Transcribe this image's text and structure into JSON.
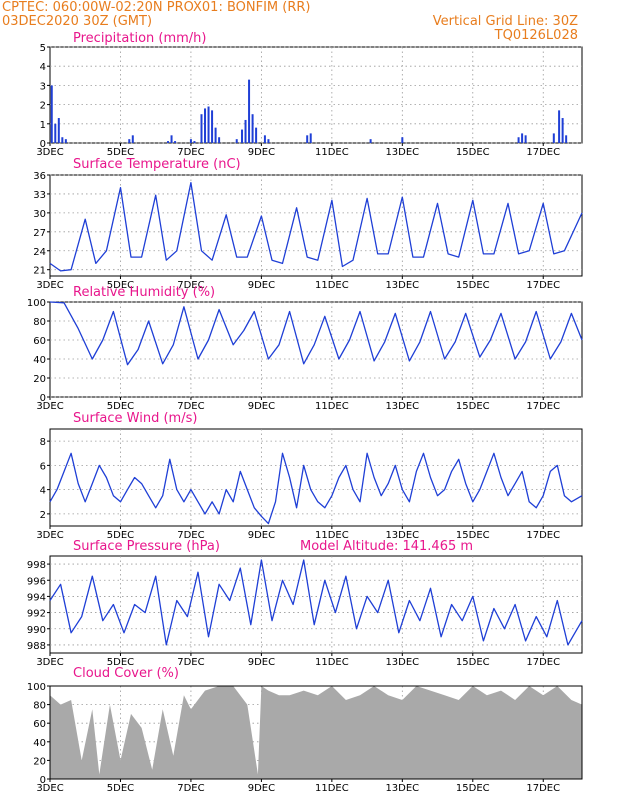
{
  "header": {
    "line1_left": "CPTEC:   060:00W-02:20N   PROX01: BONFIM (RR)",
    "line2_left": "03DEC2020 30Z (GMT)",
    "line2_right": "Vertical Grid Line: 30Z",
    "line3_right": "TQ0126L028"
  },
  "colors": {
    "header": "#e87d1e",
    "title": "#e8168c",
    "series": "#1f3fd6",
    "cloud": "#a9a9a9",
    "grid": "#9a9a9a"
  },
  "date_ticks": [
    "3DEC",
    "5DEC",
    "7DEC",
    "9DEC",
    "11DEC",
    "13DEC",
    "15DEC",
    "17DEC"
  ],
  "chart_data": [
    {
      "type": "bar",
      "title": "Precipitation (mm/h)",
      "x_range_days": [
        3.0,
        18.1
      ],
      "ylim": [
        0,
        5
      ],
      "yticks": [
        "0",
        "1",
        "2",
        "3",
        "4",
        "5"
      ],
      "x": [
        3.05,
        3.15,
        3.25,
        3.35,
        3.45,
        5.25,
        5.35,
        6.35,
        6.45,
        6.55,
        7.0,
        7.1,
        7.3,
        7.4,
        7.5,
        7.6,
        7.7,
        7.8,
        8.3,
        8.45,
        8.55,
        8.65,
        8.75,
        8.85,
        9.1,
        9.2,
        10.3,
        10.4,
        12.1,
        13.0,
        16.3,
        16.4,
        16.5,
        17.3,
        17.45,
        17.55,
        17.65
      ],
      "values": [
        3.0,
        1.0,
        1.3,
        0.3,
        0.2,
        0.2,
        0.4,
        0.1,
        0.4,
        0.1,
        0.2,
        0.1,
        1.5,
        1.8,
        1.9,
        1.7,
        0.8,
        0.3,
        0.2,
        0.7,
        1.2,
        3.3,
        1.5,
        0.8,
        0.4,
        0.2,
        0.4,
        0.5,
        0.2,
        0.3,
        0.3,
        0.5,
        0.4,
        0.5,
        1.7,
        1.3,
        0.4
      ]
    },
    {
      "type": "line",
      "title": "Surface Temperature (nC)",
      "x_range_days": [
        3.0,
        18.1
      ],
      "ylim": [
        20,
        36
      ],
      "yticks": [
        "21",
        "24",
        "27",
        "30",
        "33",
        "36"
      ],
      "x": [
        3.0,
        3.3,
        3.6,
        4.0,
        4.3,
        4.6,
        5.0,
        5.3,
        5.6,
        6.0,
        6.3,
        6.6,
        7.0,
        7.3,
        7.6,
        8.0,
        8.3,
        8.6,
        9.0,
        9.3,
        9.6,
        10.0,
        10.3,
        10.6,
        11.0,
        11.3,
        11.6,
        12.0,
        12.3,
        12.6,
        13.0,
        13.3,
        13.6,
        14.0,
        14.3,
        14.6,
        15.0,
        15.3,
        15.6,
        16.0,
        16.3,
        16.6,
        17.0,
        17.3,
        17.6,
        18.1
      ],
      "values": [
        22.0,
        20.8,
        21.0,
        29.0,
        22.0,
        24.0,
        34.0,
        23.0,
        23.0,
        32.8,
        22.5,
        24.0,
        34.8,
        24.0,
        22.5,
        29.7,
        23.0,
        23.0,
        29.5,
        22.5,
        22.0,
        30.8,
        23.0,
        22.5,
        32.0,
        21.5,
        22.5,
        32.3,
        23.5,
        23.5,
        32.5,
        23.0,
        23.0,
        31.5,
        23.5,
        23.0,
        32.0,
        23.5,
        23.5,
        31.5,
        23.5,
        24.0,
        31.5,
        23.5,
        24.0,
        30.0
      ]
    },
    {
      "type": "line",
      "title": "Relative Humidity (%)",
      "x_range_days": [
        3.0,
        18.1
      ],
      "ylim": [
        0,
        100
      ],
      "yticks": [
        "0",
        "20",
        "40",
        "60",
        "80",
        "100"
      ],
      "x": [
        3.0,
        3.4,
        3.8,
        4.2,
        4.5,
        4.8,
        5.2,
        5.5,
        5.8,
        6.2,
        6.5,
        6.8,
        7.2,
        7.5,
        7.8,
        8.2,
        8.5,
        8.8,
        9.2,
        9.5,
        9.8,
        10.2,
        10.5,
        10.8,
        11.2,
        11.5,
        11.8,
        12.2,
        12.5,
        12.8,
        13.2,
        13.5,
        13.8,
        14.2,
        14.5,
        14.8,
        15.2,
        15.5,
        15.8,
        16.2,
        16.5,
        16.8,
        17.2,
        17.5,
        17.8,
        18.1
      ],
      "values": [
        100,
        99,
        72,
        40,
        60,
        90,
        34,
        50,
        80,
        35,
        55,
        95,
        40,
        60,
        92,
        55,
        70,
        90,
        40,
        55,
        90,
        35,
        55,
        85,
        40,
        60,
        90,
        38,
        58,
        88,
        38,
        58,
        90,
        40,
        58,
        88,
        42,
        60,
        88,
        40,
        58,
        90,
        40,
        58,
        88,
        60
      ]
    },
    {
      "type": "line",
      "title": "Surface Wind (m/s)",
      "x_range_days": [
        3.0,
        18.1
      ],
      "ylim": [
        1,
        9
      ],
      "yticks": [
        "2",
        "4",
        "6",
        "8"
      ],
      "x": [
        3.0,
        3.2,
        3.4,
        3.6,
        3.8,
        4.0,
        4.2,
        4.4,
        4.6,
        4.8,
        5.0,
        5.2,
        5.4,
        5.6,
        5.8,
        6.0,
        6.2,
        6.4,
        6.6,
        6.8,
        7.0,
        7.2,
        7.4,
        7.6,
        7.8,
        8.0,
        8.2,
        8.4,
        8.6,
        8.8,
        9.0,
        9.2,
        9.4,
        9.6,
        9.8,
        10.0,
        10.2,
        10.4,
        10.6,
        10.8,
        11.0,
        11.2,
        11.4,
        11.6,
        11.8,
        12.0,
        12.2,
        12.4,
        12.6,
        12.8,
        13.0,
        13.2,
        13.4,
        13.6,
        13.8,
        14.0,
        14.2,
        14.4,
        14.6,
        14.8,
        15.0,
        15.2,
        15.4,
        15.6,
        15.8,
        16.0,
        16.2,
        16.4,
        16.6,
        16.8,
        17.0,
        17.2,
        17.4,
        17.6,
        17.8,
        18.1
      ],
      "values": [
        3.0,
        4.0,
        5.5,
        7.0,
        4.5,
        3.0,
        4.5,
        6.0,
        5.0,
        3.5,
        3.0,
        4.0,
        5.0,
        4.5,
        3.5,
        2.5,
        3.5,
        6.5,
        4.0,
        3.0,
        4.0,
        3.0,
        2.0,
        3.0,
        2.0,
        4.0,
        3.0,
        5.5,
        4.0,
        2.5,
        1.8,
        1.2,
        3.0,
        7.0,
        5.0,
        2.5,
        6.0,
        4.0,
        3.0,
        2.5,
        3.5,
        5.0,
        6.0,
        4.0,
        3.0,
        7.0,
        5.0,
        3.5,
        4.5,
        6.0,
        4.0,
        3.0,
        5.5,
        7.0,
        5.0,
        3.5,
        4.0,
        5.5,
        6.5,
        4.5,
        3.0,
        4.0,
        5.5,
        7.0,
        5.0,
        3.5,
        4.5,
        5.5,
        3.0,
        2.5,
        3.5,
        5.5,
        6.0,
        3.5,
        3.0,
        3.5
      ]
    },
    {
      "type": "line",
      "title": "Surface Pressure (hPa)",
      "annotation": "Model Altitude: 141.465  m",
      "x_range_days": [
        3.0,
        18.1
      ],
      "ylim": [
        987,
        999
      ],
      "yticks": [
        "988",
        "990",
        "992",
        "994",
        "996",
        "998"
      ],
      "x": [
        3.0,
        3.3,
        3.6,
        3.9,
        4.2,
        4.5,
        4.8,
        5.1,
        5.4,
        5.7,
        6.0,
        6.3,
        6.6,
        6.9,
        7.2,
        7.5,
        7.8,
        8.1,
        8.4,
        8.7,
        9.0,
        9.3,
        9.6,
        9.9,
        10.2,
        10.5,
        10.8,
        11.1,
        11.4,
        11.7,
        12.0,
        12.3,
        12.6,
        12.9,
        13.2,
        13.5,
        13.8,
        14.1,
        14.4,
        14.7,
        15.0,
        15.3,
        15.6,
        15.9,
        16.2,
        16.5,
        16.8,
        17.1,
        17.4,
        17.7,
        18.1
      ],
      "values": [
        993.5,
        995.5,
        989.5,
        991.5,
        996.5,
        991.0,
        993.0,
        989.5,
        993.0,
        992.0,
        996.5,
        988.0,
        993.5,
        991.5,
        997.0,
        989.0,
        995.5,
        993.5,
        997.5,
        990.5,
        998.5,
        991.0,
        996.0,
        993.0,
        998.5,
        990.5,
        996.0,
        992.0,
        996.5,
        990.0,
        994.0,
        992.0,
        996.0,
        989.5,
        993.5,
        991.0,
        995.0,
        989.0,
        993.0,
        991.0,
        994.0,
        988.5,
        992.5,
        990.0,
        993.0,
        988.5,
        991.5,
        989.0,
        993.5,
        988.0,
        991.0
      ]
    },
    {
      "type": "area",
      "title": "Cloud Cover (%)",
      "x_range_days": [
        3.0,
        18.1
      ],
      "ylim": [
        0,
        100
      ],
      "yticks": [
        "0",
        "20",
        "40",
        "60",
        "80",
        "100"
      ],
      "x": [
        3.0,
        3.3,
        3.6,
        3.9,
        4.2,
        4.4,
        4.7,
        5.0,
        5.3,
        5.6,
        5.9,
        6.2,
        6.5,
        6.8,
        7.0,
        7.4,
        7.8,
        8.2,
        8.6,
        8.9,
        9.0,
        9.2,
        9.5,
        9.8,
        10.2,
        10.6,
        11.0,
        11.4,
        11.8,
        12.2,
        12.6,
        13.0,
        13.4,
        13.8,
        14.2,
        14.6,
        15.0,
        15.4,
        15.8,
        16.2,
        16.6,
        17.0,
        17.4,
        17.8,
        18.1
      ],
      "values": [
        90,
        80,
        85,
        20,
        75,
        5,
        80,
        20,
        70,
        55,
        10,
        75,
        25,
        90,
        75,
        95,
        100,
        100,
        80,
        5,
        100,
        95,
        90,
        90,
        95,
        90,
        100,
        85,
        90,
        100,
        90,
        85,
        100,
        95,
        90,
        85,
        100,
        90,
        95,
        85,
        100,
        90,
        100,
        85,
        80
      ]
    }
  ]
}
